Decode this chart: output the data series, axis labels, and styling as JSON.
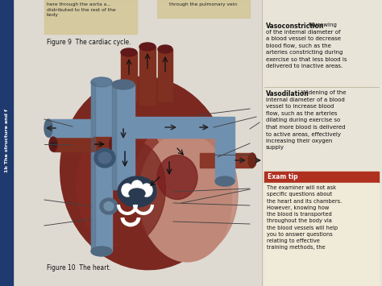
{
  "bg_color": "#dedad2",
  "left_bar_color": "#1e3a6e",
  "left_bar_text": "1b The structure and f",
  "title_text": "Figure 9  The cardiac cycle.",
  "figure10_text": "Figure 10  The heart.",
  "top_left_text": "here through the aorta a...\ndistributed to the rest of the\nbody",
  "top_center_text": "through the pulmonary vein",
  "vasoconstriction_title": "Vasoconstriction",
  "vasoconstriction_body": "Narrowing\nof the internal diameter of\na blood vessel to decrease\nblood flow, such as the\narteries constricting during\nexercise so that less blood is\ndelivered to inactive areas.",
  "vasodilation_title": "Vasodilation",
  "vasodilation_body": "Widening of the\ninternal diameter of a blood\nvessel to increase blood\nflow, such as the arteries\ndilating during exercise so\nthat more blood is delivered\nto active areas, effectively\nincreasing their oxygen\nsupply",
  "exam_tip_header": "Exam tip",
  "exam_tip_header_bg": "#b03020",
  "exam_tip_body": "The examiner will not ask\nspecific questions about\nthe heart and its chambers.\nHowever, knowing how\nthe blood is transported\nthroughout the body via\nthe blood vessels will help\nyou to answer questions\nrelating to effective\ntraining methods, the",
  "exam_tip_bg": "#f0ead8",
  "right_panel_bg": "#e8e4d8",
  "heart_dark": "#7a2820",
  "heart_mid": "#903030",
  "heart_light": "#c07870",
  "vessel_blue": "#7090b0",
  "vessel_blue_dark": "#506880",
  "vessel_red": "#803020",
  "vessel_red_dark": "#601818",
  "page_bg": "#ccc8bc"
}
